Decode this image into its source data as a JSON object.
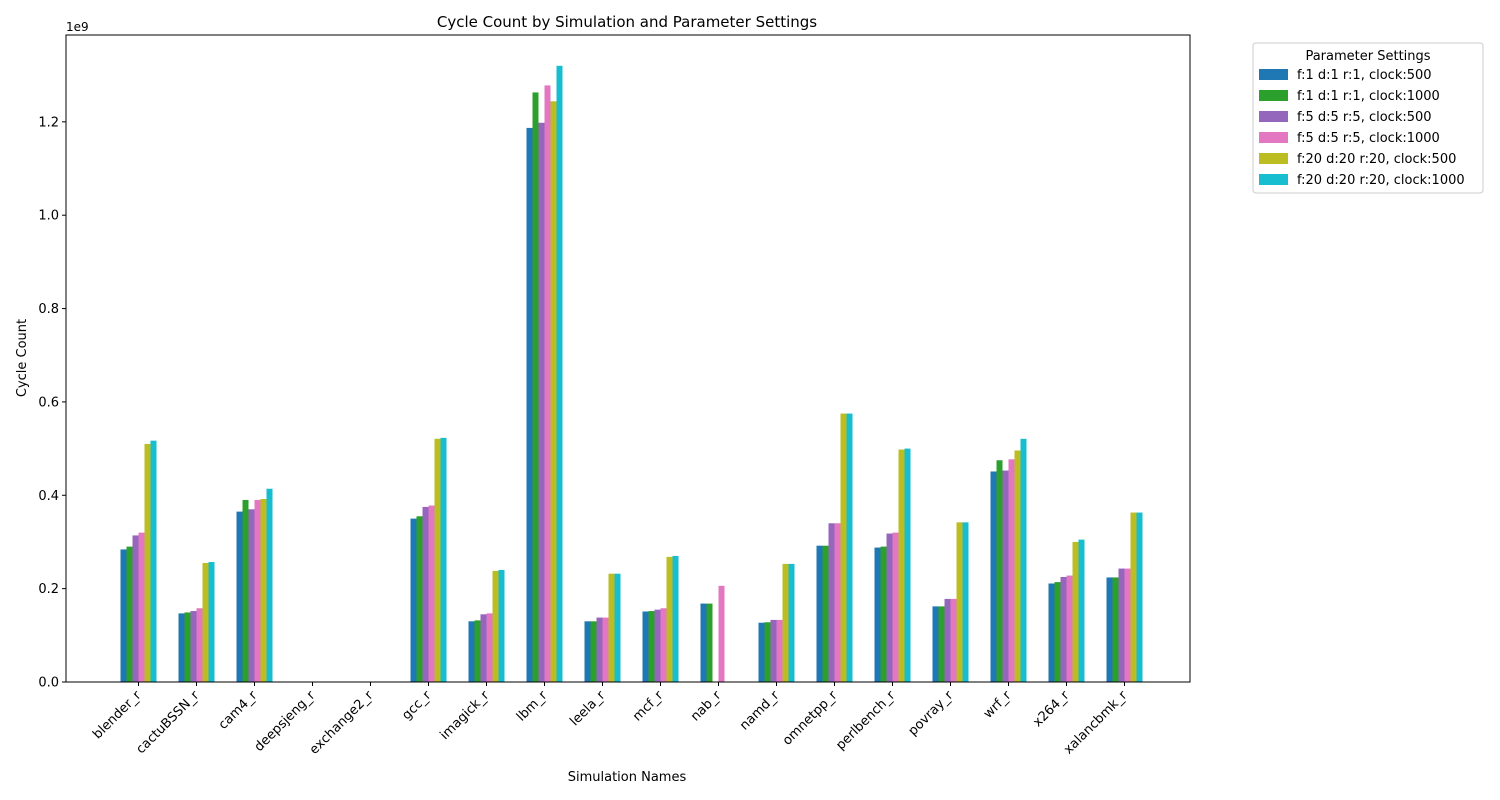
{
  "chart_data": {
    "type": "bar",
    "title": "Cycle Count by Simulation and Parameter Settings",
    "xlabel": "Simulation Names",
    "ylabel": "Cycle Count",
    "y_scale_label": "1e9",
    "ylim": [
      0,
      1.386
    ],
    "y_ticks": [
      "0.0",
      "0.2",
      "0.4",
      "0.6",
      "0.8",
      "1.0",
      "1.2"
    ],
    "grid": false,
    "legend_title": "Parameter Settings",
    "legend_position": "outside-top-right",
    "categories": [
      "blender_r",
      "cactuBSSN_r",
      "cam4_r",
      "deepsjeng_r",
      "exchange2_r",
      "gcc_r",
      "imagick_r",
      "lbm_r",
      "leela_r",
      "mcf_r",
      "nab_r",
      "namd_r",
      "omnetpp_r",
      "perlbench_r",
      "povray_r",
      "wrf_r",
      "x264_r",
      "xalancbmk_r"
    ],
    "series": [
      {
        "name": "f:1 d:1 r:1, clock:500",
        "color": "#1f77b4",
        "values": [
          0.284,
          0.147,
          0.365,
          0,
          0,
          0.35,
          0.13,
          1.187,
          0.13,
          0.151,
          0.168,
          0.127,
          0.292,
          0.288,
          0.162,
          0.451,
          0.211,
          0.224
        ]
      },
      {
        "name": "f:1 d:1 r:1, clock:1000",
        "color": "#2ca02c",
        "values": [
          0.29,
          0.149,
          0.39,
          0,
          0,
          0.355,
          0.132,
          1.263,
          0.13,
          0.152,
          0.168,
          0.128,
          0.292,
          0.29,
          0.162,
          0.475,
          0.214,
          0.224
        ]
      },
      {
        "name": "f:5 d:5 r:5, clock:500",
        "color": "#9467bd",
        "values": [
          0.314,
          0.152,
          0.37,
          0,
          0,
          0.375,
          0.145,
          1.198,
          0.138,
          0.155,
          0,
          0.133,
          0.34,
          0.318,
          0.178,
          0.453,
          0.225,
          0.243
        ]
      },
      {
        "name": "f:5 d:5 r:5, clock:1000",
        "color": "#e377c2",
        "values": [
          0.32,
          0.158,
          0.39,
          0,
          0,
          0.378,
          0.147,
          1.278,
          0.138,
          0.158,
          0.206,
          0.133,
          0.34,
          0.32,
          0.178,
          0.477,
          0.228,
          0.243
        ]
      },
      {
        "name": "f:20 d:20 r:20, clock:500",
        "color": "#bcbd22",
        "values": [
          0.51,
          0.255,
          0.392,
          0,
          0,
          0.521,
          0.238,
          1.244,
          0.232,
          0.268,
          0,
          0.253,
          0.575,
          0.498,
          0.342,
          0.496,
          0.3,
          0.363
        ]
      },
      {
        "name": "f:20 d:20 r:20, clock:1000",
        "color": "#17becf",
        "values": [
          0.517,
          0.257,
          0.414,
          0,
          0,
          0.523,
          0.24,
          1.32,
          0.232,
          0.27,
          0,
          0.253,
          0.575,
          0.5,
          0.342,
          0.521,
          0.305,
          0.363
        ]
      }
    ]
  }
}
